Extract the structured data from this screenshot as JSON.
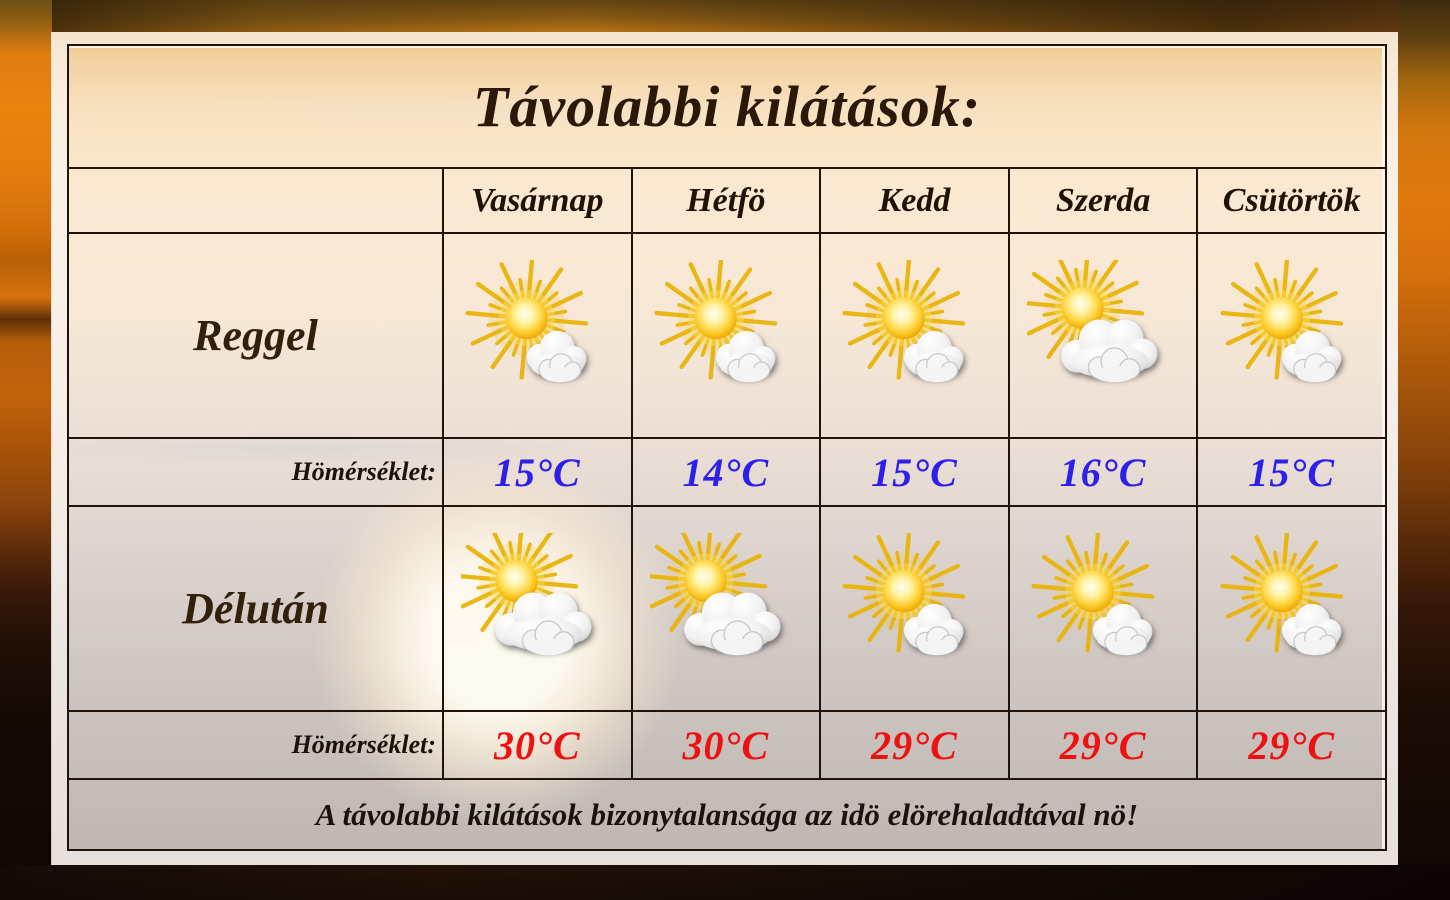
{
  "title": "Távolabbi kilátások:",
  "days": [
    "Vasárnap",
    "Hétfö",
    "Kedd",
    "Szerda",
    "Csütörtök"
  ],
  "labels": {
    "morning": "Reggel",
    "afternoon": "Délután",
    "temperature": "Hömérséklet:"
  },
  "morning": {
    "icons": [
      "sun-cloud",
      "sun-cloud",
      "sun-cloud",
      "sun-clouds",
      "sun-cloud"
    ],
    "temps": [
      "15°C",
      "14°C",
      "15°C",
      "16°C",
      "15°C"
    ]
  },
  "afternoon": {
    "icons": [
      "sun-clouds",
      "sun-clouds",
      "sun-cloud",
      "sun-cloud",
      "sun-cloud"
    ],
    "temps": [
      "30°C",
      "30°C",
      "29°C",
      "29°C",
      "29°C"
    ]
  },
  "footer": "A távolabbi kilátások bizonytalansága az idö elörehaladtával nö!",
  "colors": {
    "morning_temp": "#2d20e8",
    "afternoon_temp": "#ee1111"
  }
}
